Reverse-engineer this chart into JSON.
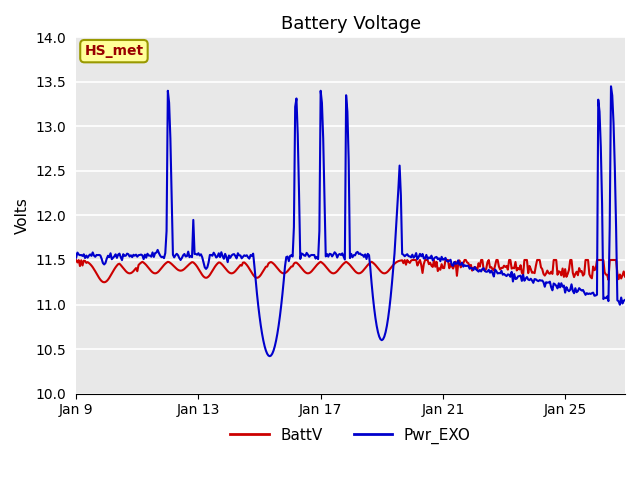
{
  "title": "Battery Voltage",
  "ylabel": "Volts",
  "xlabel": "",
  "ylim": [
    10.0,
    14.0
  ],
  "yticks": [
    10.0,
    10.5,
    11.0,
    11.5,
    12.0,
    12.5,
    13.0,
    13.5,
    14.0
  ],
  "xtick_labels": [
    "Jan 9",
    "Jan 13",
    "Jan 17",
    "Jan 21",
    "Jan 25"
  ],
  "xtick_positions": [
    0,
    96,
    192,
    288,
    384
  ],
  "battv_color": "#cc0000",
  "pwr_exo_color": "#0000cc",
  "bg_color": "#e8e8e8",
  "outer_bg": "#ffffff",
  "legend_battv": "BattV",
  "legend_pwr": "Pwr_EXO",
  "annotation_text": "HS_met",
  "annotation_bg": "#ffff99",
  "annotation_border": "#999900",
  "annotation_text_color": "#990000",
  "total_points": 432,
  "line_width": 1.5
}
